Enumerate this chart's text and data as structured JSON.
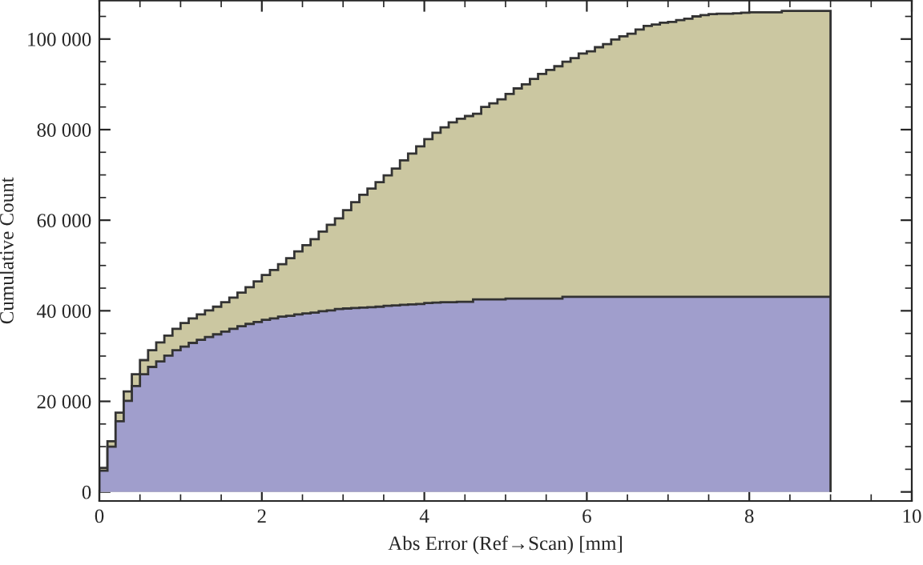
{
  "chart_data": {
    "type": "histogram",
    "xlabel": "Abs Error (Ref→Scan) [mm]",
    "ylabel": "Cumulative Count",
    "bins": [
      0,
      0.1,
      0.2,
      0.3,
      0.4,
      0.5,
      0.6,
      0.7,
      0.8,
      0.9,
      1,
      1.1,
      1.2,
      1.3,
      1.4,
      1.5,
      1.6,
      1.7,
      1.8,
      1.9,
      2,
      2.1,
      2.2,
      2.3,
      2.4,
      2.5,
      2.6,
      2.7,
      2.8,
      2.9,
      3,
      3.1,
      3.2,
      3.3,
      3.4,
      3.5,
      3.6,
      3.7,
      3.8,
      3.9,
      4,
      4.1,
      4.2,
      4.3,
      4.4,
      4.5,
      4.6,
      4.7,
      4.8,
      4.9,
      5,
      5.1,
      5.2,
      5.3,
      5.4,
      5.5,
      5.6,
      5.7,
      5.8,
      5.9,
      6,
      6.1,
      6.2,
      6.3,
      6.4,
      6.5,
      6.6,
      6.7,
      6.8,
      6.9,
      7,
      7.1,
      7.2,
      7.3,
      7.4,
      7.5,
      7.6,
      7.7,
      7.8,
      7.9,
      8,
      8.1,
      8.2,
      8.3,
      8.4,
      8.5,
      8.6,
      8.7,
      8.8,
      8.9,
      9
    ],
    "series": [
      {
        "color": "#cbc7a1",
        "values": [
          5300,
          11200,
          17500,
          22200,
          26000,
          29100,
          31300,
          33000,
          34500,
          36000,
          37300,
          38300,
          39200,
          40100,
          40900,
          41900,
          42900,
          44000,
          45200,
          46500,
          47900,
          49000,
          50300,
          51600,
          53100,
          54500,
          55800,
          57500,
          59000,
          60400,
          62200,
          64000,
          65600,
          67000,
          68400,
          69900,
          71400,
          73200,
          74700,
          76300,
          77900,
          79300,
          80500,
          81600,
          82400,
          83000,
          83500,
          85000,
          85800,
          86700,
          87900,
          89100,
          90000,
          91200,
          92300,
          93200,
          94000,
          95000,
          95800,
          96800,
          97300,
          98200,
          98900,
          99900,
          100600,
          101200,
          102100,
          102900,
          103200,
          103600,
          103800,
          104200,
          104500,
          105000,
          105300,
          105500,
          105600,
          105600,
          105700,
          105800,
          105900,
          105900,
          105900,
          105900,
          106200,
          106200,
          106200,
          106200,
          106200,
          106200
        ]
      },
      {
        "color": "#a09ecc",
        "values": [
          4700,
          10000,
          15600,
          20100,
          23400,
          26000,
          27600,
          28800,
          30100,
          31300,
          32100,
          32900,
          33600,
          34200,
          34800,
          35400,
          36000,
          36600,
          37100,
          37500,
          38000,
          38300,
          38700,
          38900,
          39200,
          39400,
          39600,
          39900,
          40100,
          40400,
          40500,
          40600,
          40700,
          40800,
          40900,
          41100,
          41200,
          41300,
          41400,
          41500,
          41700,
          41800,
          41900,
          41900,
          42000,
          42000,
          42500,
          42500,
          42500,
          42500,
          42700,
          42700,
          42700,
          42700,
          42700,
          42700,
          42700,
          43100,
          43100,
          43100,
          43100,
          43100,
          43100,
          43100,
          43100,
          43100,
          43100,
          43100,
          43100,
          43100,
          43100,
          43100,
          43100,
          43100,
          43100,
          43100,
          43100,
          43100,
          43100,
          43100,
          43100,
          43100,
          43100,
          43100,
          43100,
          43100,
          43100,
          43100,
          43100,
          43100
        ]
      }
    ],
    "xlim": [
      0,
      10
    ],
    "xticks": [
      0,
      {
        "value": 0.5,
        "label": null
      },
      {
        "value": 1,
        "label": null
      },
      {
        "value": 1.5,
        "label": null
      },
      2,
      {
        "value": 2.5,
        "label": null
      },
      {
        "value": 3,
        "label": null
      },
      {
        "value": 3.5,
        "label": null
      },
      4,
      {
        "value": 4.5,
        "label": null
      },
      {
        "value": 5,
        "label": null
      },
      {
        "value": 5.5,
        "label": null
      },
      6,
      {
        "value": 6.5,
        "label": null
      },
      {
        "value": 7,
        "label": null
      },
      {
        "value": 7.5,
        "label": null
      },
      8,
      {
        "value": 8.5,
        "label": null
      },
      {
        "value": 9,
        "label": null
      },
      {
        "value": 9.5,
        "label": null
      },
      10
    ],
    "ylim": [
      -2000,
      108500
    ],
    "yticks": [
      0,
      {
        "value": 5000,
        "label": null
      },
      {
        "value": 10000,
        "label": null
      },
      {
        "value": 15000,
        "label": null
      },
      {
        "value": 20000,
        "label": "20 000"
      },
      {
        "value": 25000,
        "label": null
      },
      {
        "value": 30000,
        "label": null
      },
      {
        "value": 35000,
        "label": null
      },
      {
        "value": 40000,
        "label": "40 000"
      },
      {
        "value": 45000,
        "label": null
      },
      {
        "value": 50000,
        "label": null
      },
      {
        "value": 55000,
        "label": null
      },
      {
        "value": 60000,
        "label": "60 000"
      },
      {
        "value": 65000,
        "label": null
      },
      {
        "value": 70000,
        "label": null
      },
      {
        "value": 75000,
        "label": null
      },
      {
        "value": 80000,
        "label": "80 000"
      },
      {
        "value": 85000,
        "label": null
      },
      {
        "value": 90000,
        "label": null
      },
      {
        "value": 95000,
        "label": null
      },
      {
        "value": 100000,
        "label": "100 000"
      },
      {
        "value": 105000,
        "label": null
      }
    ],
    "grid": false,
    "legend": false
  }
}
